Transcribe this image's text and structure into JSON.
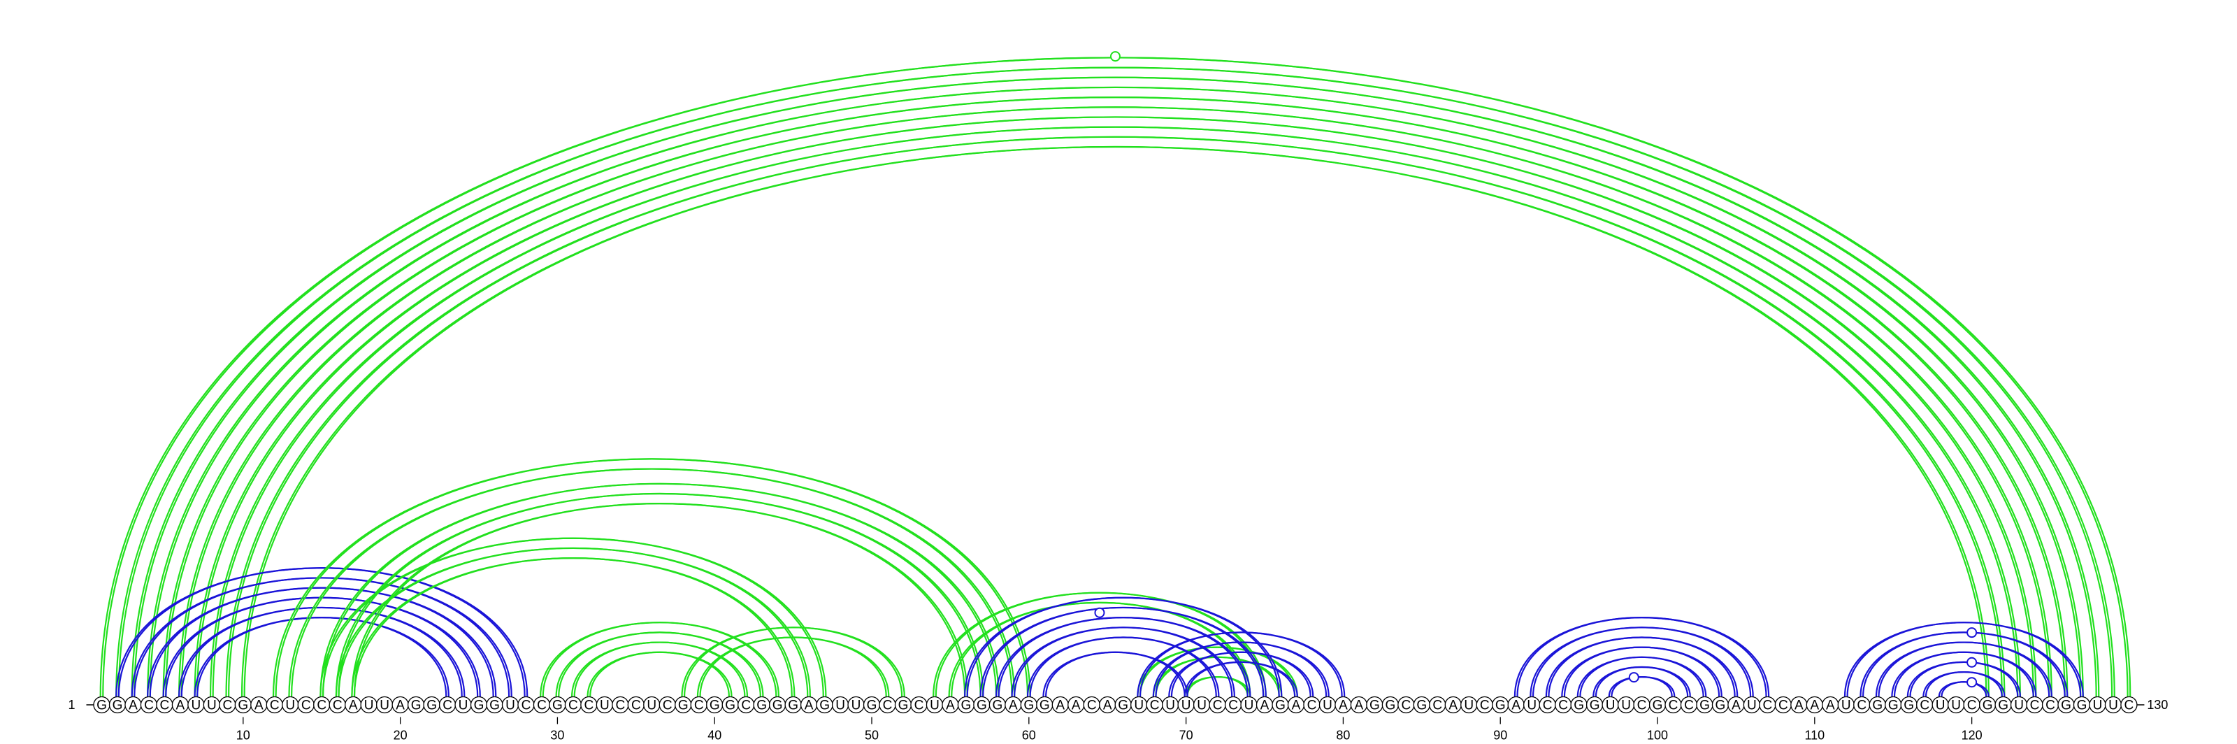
{
  "sequence": "GGACCAUUCGACUCCCAUUAGGCUGGUCCGCCUCCUCGCGGCGGGAGUUGCGCUAGGGAGGAACAGUCUUUCCUAGACUAAGGCGCAUCGAUCCGGUUCGCCGGAUCCAAAUCGGGCUUCGGUCCGGUUC",
  "start_label": "1",
  "end_label": "130",
  "ticks": [
    10,
    20,
    30,
    40,
    50,
    60,
    70,
    80,
    90,
    100,
    110,
    120
  ],
  "colors": {
    "green": "#22e01e",
    "blue": "#1a14d8",
    "base_line": "#000000"
  },
  "arcs": [
    {
      "i": 1,
      "j": 130,
      "color": "green",
      "double": true
    },
    {
      "i": 2,
      "j": 129,
      "color": "green",
      "double": true
    },
    {
      "i": 3,
      "j": 128,
      "color": "green",
      "double": true
    },
    {
      "i": 4,
      "j": 127,
      "color": "green",
      "double": true
    },
    {
      "i": 5,
      "j": 126,
      "color": "green",
      "double": true
    },
    {
      "i": 6,
      "j": 125,
      "color": "green",
      "double": true
    },
    {
      "i": 7,
      "j": 124,
      "color": "green",
      "double": true
    },
    {
      "i": 8,
      "j": 123,
      "color": "green",
      "double": true
    },
    {
      "i": 9,
      "j": 122,
      "color": "green",
      "double": true
    },
    {
      "i": 10,
      "j": 121,
      "color": "green",
      "double": true
    },
    {
      "i": 2,
      "j": 28,
      "color": "blue",
      "double": true
    },
    {
      "i": 3,
      "j": 27,
      "color": "blue",
      "double": true
    },
    {
      "i": 4,
      "j": 26,
      "color": "blue",
      "double": true
    },
    {
      "i": 5,
      "j": 25,
      "color": "blue",
      "double": true
    },
    {
      "i": 6,
      "j": 24,
      "color": "blue",
      "double": true
    },
    {
      "i": 7,
      "j": 23,
      "color": "blue",
      "double": true
    },
    {
      "i": 12,
      "j": 60,
      "color": "green",
      "double": true
    },
    {
      "i": 13,
      "j": 59,
      "color": "green",
      "double": true
    },
    {
      "i": 15,
      "j": 58,
      "color": "green",
      "double": true
    },
    {
      "i": 16,
      "j": 57,
      "color": "green",
      "double": true
    },
    {
      "i": 17,
      "j": 56,
      "color": "green",
      "double": true
    },
    {
      "i": 15,
      "j": 47,
      "color": "green",
      "double": true
    },
    {
      "i": 16,
      "j": 46,
      "color": "green",
      "double": true
    },
    {
      "i": 17,
      "j": 45,
      "color": "green",
      "double": true
    },
    {
      "i": 29,
      "j": 44,
      "color": "green",
      "double": true
    },
    {
      "i": 30,
      "j": 43,
      "color": "green",
      "double": true
    },
    {
      "i": 31,
      "j": 42,
      "color": "green",
      "double": true
    },
    {
      "i": 32,
      "j": 41,
      "color": "green",
      "double": true
    },
    {
      "i": 38,
      "j": 52,
      "color": "green",
      "double": true
    },
    {
      "i": 39,
      "j": 51,
      "color": "green",
      "double": true
    },
    {
      "i": 54,
      "j": 75,
      "color": "green",
      "double": true
    },
    {
      "i": 55,
      "j": 74,
      "color": "green",
      "double": true
    },
    {
      "i": 67,
      "j": 77,
      "color": "green",
      "double": true
    },
    {
      "i": 68,
      "j": 76,
      "color": "green",
      "double": true
    },
    {
      "i": 70,
      "j": 74,
      "color": "green",
      "double": true
    },
    {
      "i": 56,
      "j": 76,
      "color": "blue",
      "double": true
    },
    {
      "i": 57,
      "j": 75,
      "color": "blue",
      "double": true
    },
    {
      "i": 58,
      "j": 74,
      "color": "blue",
      "double": true
    },
    {
      "i": 59,
      "j": 73,
      "color": "blue",
      "double": true
    },
    {
      "i": 60,
      "j": 72,
      "color": "blue",
      "double": true
    },
    {
      "i": 61,
      "j": 70,
      "color": "blue",
      "double": true
    },
    {
      "i": 67,
      "j": 80,
      "color": "blue",
      "double": true
    },
    {
      "i": 68,
      "j": 79,
      "color": "blue",
      "double": true
    },
    {
      "i": 69,
      "j": 78,
      "color": "blue",
      "double": true
    },
    {
      "i": 70,
      "j": 77,
      "color": "blue",
      "double": true
    },
    {
      "i": 91,
      "j": 107,
      "color": "blue",
      "double": true
    },
    {
      "i": 92,
      "j": 106,
      "color": "blue",
      "double": true
    },
    {
      "i": 93,
      "j": 105,
      "color": "blue",
      "double": true
    },
    {
      "i": 94,
      "j": 104,
      "color": "blue",
      "double": true
    },
    {
      "i": 95,
      "j": 103,
      "color": "blue",
      "double": true
    },
    {
      "i": 96,
      "j": 102,
      "color": "blue",
      "double": true
    },
    {
      "i": 97,
      "j": 101,
      "color": "blue",
      "double": true
    },
    {
      "i": 112,
      "j": 127,
      "color": "blue",
      "double": true
    },
    {
      "i": 113,
      "j": 126,
      "color": "blue",
      "double": true
    },
    {
      "i": 114,
      "j": 125,
      "color": "blue",
      "double": true
    },
    {
      "i": 115,
      "j": 124,
      "color": "blue",
      "double": true
    },
    {
      "i": 116,
      "j": 123,
      "color": "blue",
      "double": true
    },
    {
      "i": 117,
      "j": 122,
      "color": "blue",
      "double": true
    },
    {
      "i": 118,
      "j": 121,
      "color": "blue",
      "double": true
    }
  ],
  "markers": [
    {
      "pos": 65.5,
      "height_of_arc": [
        1,
        130
      ],
      "color": "green"
    },
    {
      "pos": 64.5,
      "height_of_arc": [
        56,
        73
      ],
      "color": "blue"
    },
    {
      "pos": 98.5,
      "height_of_arc": [
        97,
        101
      ],
      "color": "blue"
    },
    {
      "pos": 120,
      "height_of_arc": [
        113,
        126
      ],
      "color": "blue"
    },
    {
      "pos": 120,
      "height_of_arc": [
        116,
        123
      ],
      "color": "blue"
    },
    {
      "pos": 120,
      "height_of_arc": [
        118,
        121
      ],
      "color": "blue"
    }
  ]
}
